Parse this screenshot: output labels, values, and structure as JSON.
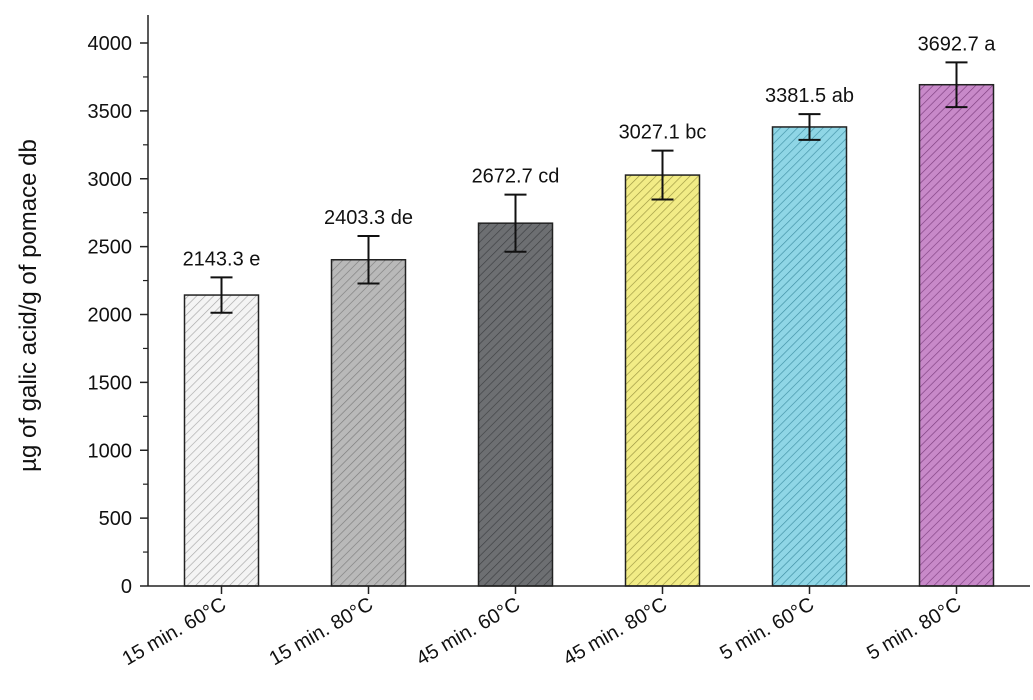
{
  "chart_data": {
    "type": "bar",
    "title": "",
    "xlabel": "",
    "ylabel": "µg of galic acid/g of pomace db",
    "ylim": [
      0,
      4000
    ],
    "yticks": [
      0,
      500,
      1000,
      1500,
      2000,
      2500,
      3000,
      3500,
      4000
    ],
    "grid": false,
    "categories": [
      "15 min. 60°C",
      "15 min. 80°C",
      "45 min. 60°C",
      "45 min. 80°C",
      "5 min. 60°C",
      "5 min. 80°C"
    ],
    "values": [
      2143.3,
      2403.3,
      2672.7,
      3027.1,
      3381.5,
      3692.7
    ],
    "errors": [
      130,
      175,
      210,
      180,
      95,
      165
    ],
    "data_labels": [
      "2143.3 e",
      "2403.3 de",
      "2672.7 cd",
      "3027.1 bc",
      "3381.5 ab",
      "3692.7 a"
    ],
    "colors": [
      "#f4f4f4",
      "#b9b9b9",
      "#6d6f72",
      "#f2ec86",
      "#8fd6e6",
      "#c889c9"
    ],
    "hatch_colors": [
      "#a8a8a8",
      "#7c7c7c",
      "#3d3f42",
      "#9a9440",
      "#3f8fa3",
      "#7e3f80"
    ]
  }
}
